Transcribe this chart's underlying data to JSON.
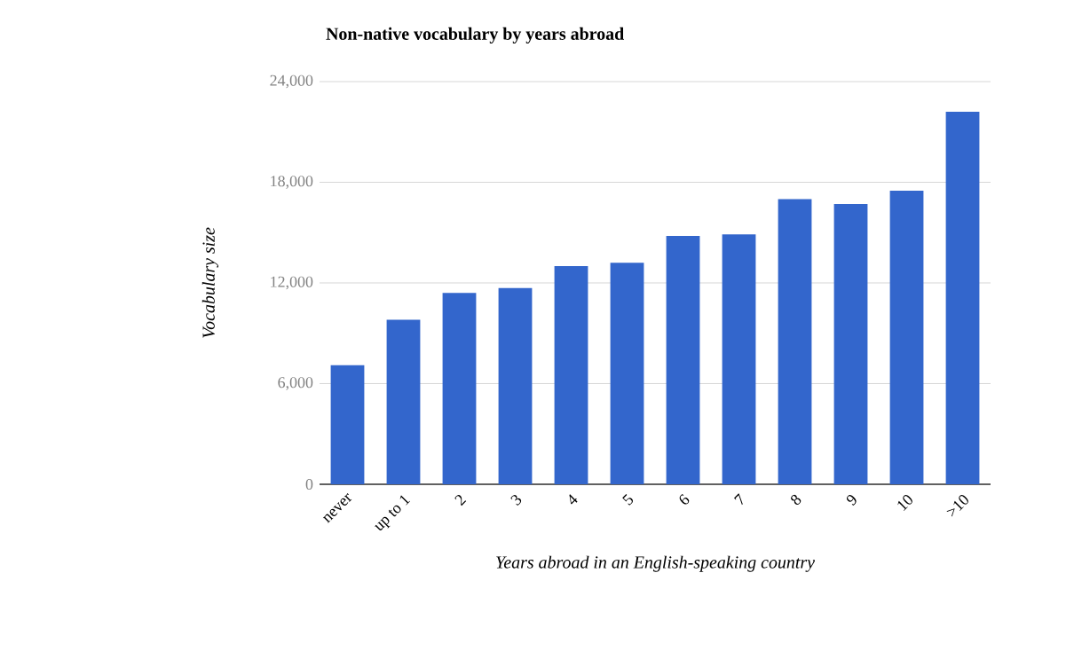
{
  "chart_data": {
    "type": "bar",
    "title": "Non-native vocabulary by years abroad",
    "xlabel": "Years abroad in an English-speaking country",
    "ylabel": "Vocabulary size",
    "categories": [
      "never",
      "up to 1",
      "2",
      "3",
      "4",
      "5",
      "6",
      "7",
      "8",
      "9",
      "10",
      ">10"
    ],
    "values": [
      7100,
      9800,
      11400,
      11700,
      13000,
      13200,
      14800,
      14900,
      17000,
      16700,
      17500,
      22200
    ],
    "color": "#3366cc",
    "ylim": [
      0,
      24000
    ],
    "yticks": [
      {
        "value": 0,
        "label": "0"
      },
      {
        "value": 6000,
        "label": "6,000"
      },
      {
        "value": 12000,
        "label": "12,000"
      },
      {
        "value": 18000,
        "label": "18,000"
      },
      {
        "value": 24000,
        "label": "24,000"
      }
    ],
    "grid": "y"
  }
}
